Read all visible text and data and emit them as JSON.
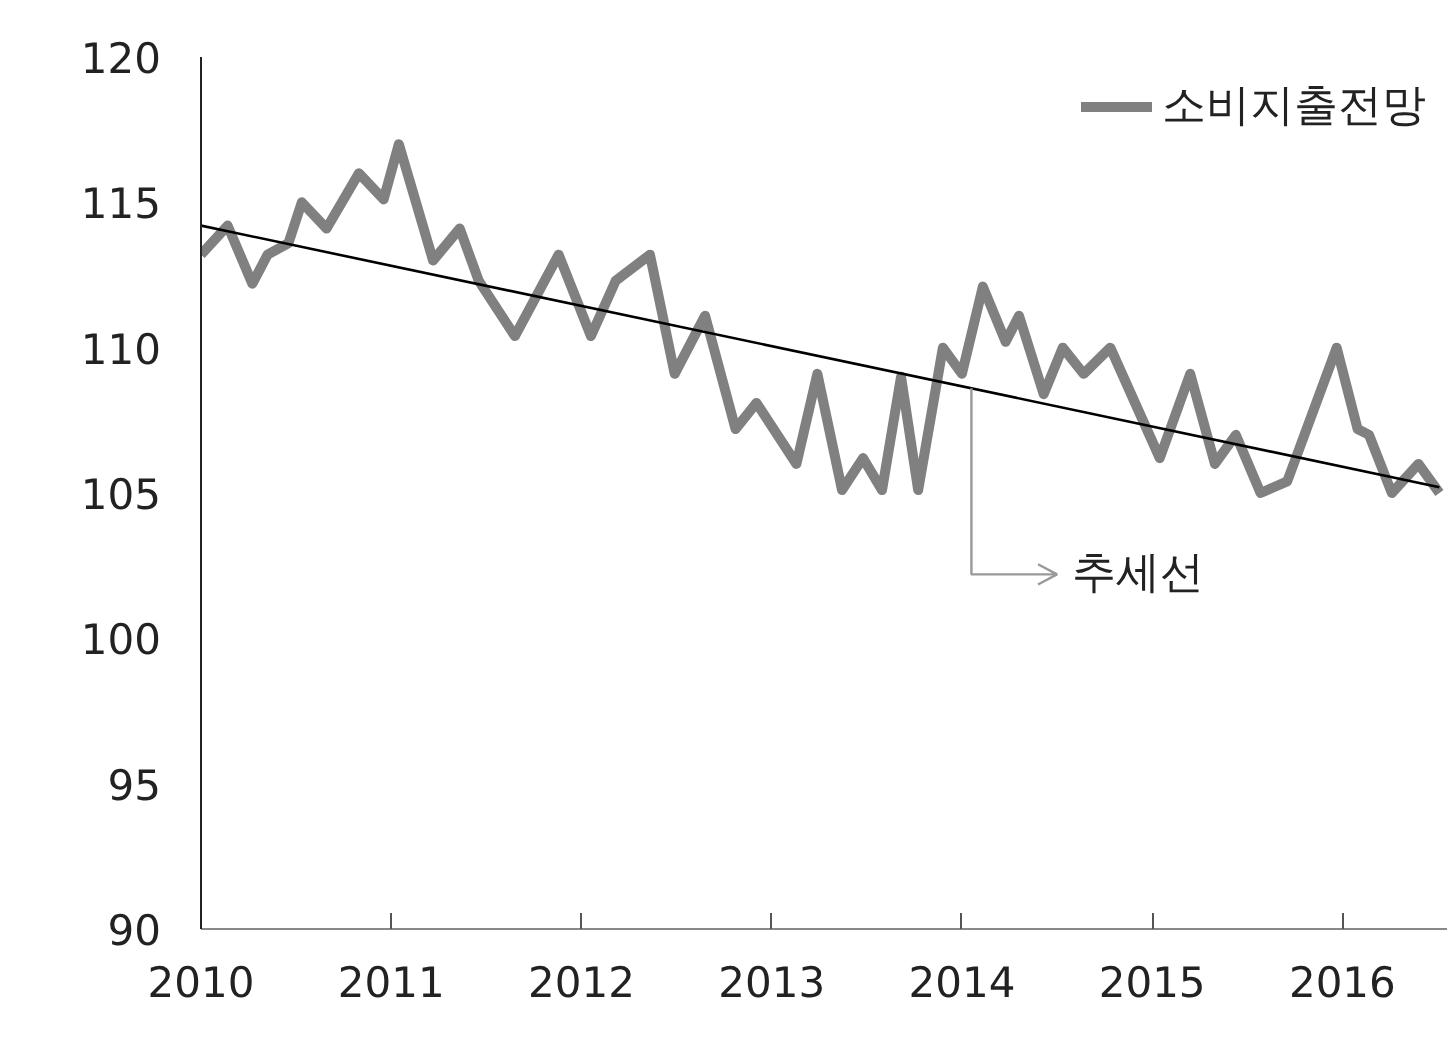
{
  "chart_data": {
    "type": "line",
    "xlim": [
      2010,
      2016.55
    ],
    "ylim": [
      90,
      120
    ],
    "xticks": [
      2010,
      2011,
      2012,
      2013,
      2014,
      2015,
      2016
    ],
    "yticks": [
      90,
      95,
      100,
      105,
      110,
      115,
      120
    ],
    "grid": false,
    "legend": "top right",
    "marker": "none",
    "line_style": "solid",
    "series": [
      {
        "name": "소비지출전망",
        "color": "#808080",
        "x": [
          2010.0,
          2010.14,
          2010.27,
          2010.35,
          2010.46,
          2010.53,
          2010.66,
          2010.83,
          2010.96,
          2011.04,
          2011.22,
          2011.36,
          2011.46,
          2011.65,
          2011.88,
          2012.05,
          2012.18,
          2012.36,
          2012.49,
          2012.65,
          2012.81,
          2012.92,
          2013.13,
          2013.24,
          2013.37,
          2013.48,
          2013.58,
          2013.68,
          2013.77,
          2013.9,
          2014.0,
          2014.11,
          2014.23,
          2014.3,
          2014.43,
          2014.53,
          2014.64,
          2014.78,
          2015.04,
          2015.2,
          2015.33,
          2015.44,
          2015.57,
          2015.71,
          2015.97,
          2016.08,
          2016.14,
          2016.26,
          2016.4,
          2016.51
        ],
        "values": [
          113.2,
          114.2,
          112.2,
          113.2,
          113.6,
          115.0,
          114.1,
          116.0,
          115.1,
          117.0,
          113.0,
          114.1,
          112.3,
          110.4,
          113.2,
          110.4,
          112.3,
          113.2,
          109.1,
          111.1,
          107.2,
          108.1,
          106.0,
          109.1,
          105.1,
          106.2,
          105.1,
          109.0,
          105.1,
          110.0,
          109.1,
          112.1,
          110.2,
          111.1,
          108.4,
          110.0,
          109.1,
          110.0,
          106.2,
          109.1,
          106.0,
          107.0,
          105.0,
          105.4,
          110.0,
          107.2,
          107.0,
          105.0,
          106.0,
          105.0
        ]
      },
      {
        "color": "#000000",
        "x": [
          2010.0,
          2016.51
        ],
        "values": [
          114.2,
          105.2
        ]
      }
    ],
    "annotations": [
      {
        "text": "추세선",
        "x": 2014.05,
        "y": 108.6
      }
    ]
  }
}
